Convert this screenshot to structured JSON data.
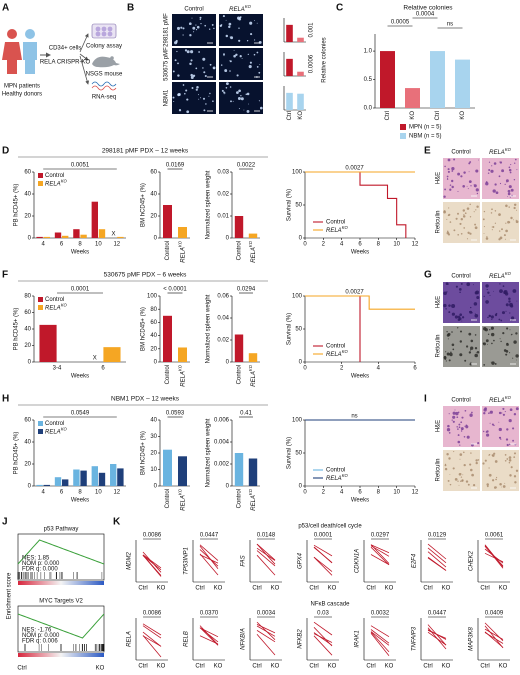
{
  "figure": {
    "panel_a": {
      "label": "A",
      "donors": [
        "MPN patients",
        "Healthy donors"
      ],
      "cells": "CD34+ cells",
      "method": "RELA CRISPR-KO",
      "assays": [
        "Colony assay",
        "NSGS mouse",
        "RNA-seq"
      ]
    },
    "panel_b": {
      "label": "B",
      "columns": [
        "Control",
        [
          "RELA",
          "KO"
        ]
      ],
      "rows": [
        "298181 pMF",
        "530675 pMF",
        "NBM1"
      ],
      "ylabel": "Relative colonies",
      "categories": [
        "Ctrl",
        "KO"
      ],
      "charts": [
        {
          "type": "bar",
          "values": [
            1,
            0.25
          ],
          "colors": [
            "#c0182a",
            "#e8707a"
          ],
          "ylim": [
            0,
            1.4
          ],
          "pvalue": "0.001"
        },
        {
          "type": "bar",
          "values": [
            1,
            0.25
          ],
          "colors": [
            "#c0182a",
            "#e8707a"
          ],
          "ylim": [
            0,
            1.4
          ],
          "pvalue": "0.0006"
        },
        {
          "type": "bar",
          "values": [
            1,
            0.95
          ],
          "colors": [
            "#a8d4ee",
            "#a8d4ee"
          ],
          "ylim": [
            0,
            1.4
          ]
        }
      ]
    },
    "panel_c": {
      "label": "C",
      "title": "Relative colonies",
      "type": "bar",
      "categories": [
        "Ctrl",
        "KO",
        "Ctrl",
        "KO"
      ],
      "values": [
        1,
        0.35,
        1,
        0.85
      ],
      "colors": [
        "#c0182a",
        "#e8707a",
        "#a8d4ee",
        "#a8d4ee"
      ],
      "ylim": [
        0,
        1.3
      ],
      "yticks": [
        {
          "value": 0,
          "label": "0.0"
        },
        0.5,
        {
          "value": 1,
          "label": "1.0"
        }
      ],
      "pvalues": [
        "0.0005",
        "0.0004",
        "ns"
      ],
      "legend": [
        {
          "name": "MPN (n = 5)",
          "color": "#c0182a"
        },
        {
          "name": "NBM (n = 5)",
          "color": "#a8d4ee"
        }
      ]
    },
    "panel_d": {
      "label": "D",
      "title": "298181 pMF PDX – 12 weeks",
      "pb": {
        "type": "bar",
        "ylabel": "PB hCD45+ (%)",
        "xlabel": "Weeks",
        "categories": [
          "4",
          "6",
          "8",
          "10",
          "12"
        ],
        "series": [
          {
            "name": "Control",
            "color": "#c0182a",
            "values": [
              1,
              5,
              8,
              33,
              null
            ]
          },
          {
            "name": [
              "RELA",
              "KO"
            ],
            "color": "#f5a623",
            "values": [
              1,
              2,
              3,
              8,
              1
            ]
          }
        ],
        "ylim": [
          0,
          60
        ],
        "yticks": [
          0,
          20,
          40,
          60
        ],
        "pvalue": "0.0051",
        "annotations": [
          {
            "text": "X",
            "x": "12"
          }
        ]
      },
      "bm": {
        "type": "bar",
        "ylabel": "BM hCD45+ (%)",
        "categories": [
          "Control",
          [
            "RELA",
            "KO"
          ]
        ],
        "values": [
          30,
          10
        ],
        "colors": [
          "#c0182a",
          "#f5a623"
        ],
        "ylim": [
          0,
          60
        ],
        "yticks": [
          0,
          20,
          40,
          60
        ],
        "pvalue": "0.0169"
      },
      "spleen": {
        "type": "bar",
        "ylabel": "Normalized spleen weight",
        "categories": [
          "Control",
          [
            "RELA",
            "KO"
          ]
        ],
        "values": [
          0.01,
          0.002
        ],
        "colors": [
          "#c0182a",
          "#f5a623"
        ],
        "ylim": [
          0,
          0.03
        ],
        "yticks": [
          0,
          0.01,
          0.02,
          0.03
        ],
        "pvalue": "0.0022"
      },
      "survival": {
        "type": "line",
        "ylabel": "Survival (%)",
        "xlabel": "Weeks",
        "series": [
          {
            "name": "Control",
            "color": "#c0182a",
            "x": [
              0,
              6,
              6,
              9,
              9,
              10,
              10,
              11,
              11
            ],
            "values": [
              100,
              100,
              80,
              80,
              60,
              60,
              20,
              20,
              0
            ]
          },
          {
            "name": [
              "RELA",
              "KO"
            ],
            "color": "#f5a623",
            "x": [
              0,
              12
            ],
            "values": [
              100,
              100
            ]
          }
        ],
        "xlim": [
          0,
          12
        ],
        "xticks": [
          0,
          2,
          4,
          6,
          8,
          10,
          12
        ],
        "ylim": [
          0,
          100
        ],
        "yticks": [
          0,
          50,
          100
        ],
        "pvalue": "0.0027"
      }
    },
    "panel_e": {
      "label": "E",
      "columns": [
        "Control",
        [
          "RELA",
          "KO"
        ]
      ],
      "rows": [
        "H&E",
        "Reticulin"
      ]
    },
    "panel_f": {
      "label": "F",
      "title": "530675 pMF PDX – 6 weeks",
      "pb": {
        "type": "bar",
        "ylabel": "PB hCD45+ (%)",
        "xlabel": "Weeks",
        "categories": [
          "3-4",
          "6"
        ],
        "series": [
          {
            "name": "Control",
            "color": "#c0182a",
            "values": [
              45,
              null
            ]
          },
          {
            "name": [
              "RELA",
              "KO"
            ],
            "color": "#f5a623",
            "values": [
              null,
              18
            ]
          }
        ],
        "ylim": [
          0,
          80
        ],
        "yticks": [
          0,
          20,
          40,
          60,
          80
        ],
        "pvalue": "0.0001",
        "annotations": [
          {
            "text": "X",
            "x": "6"
          }
        ]
      },
      "bm": {
        "type": "bar",
        "ylabel": "BM hCD45+ (%)",
        "categories": [
          "Control",
          [
            "RELA",
            "KO"
          ]
        ],
        "values": [
          70,
          22
        ],
        "colors": [
          "#c0182a",
          "#f5a623"
        ],
        "ylim": [
          0,
          100
        ],
        "yticks": [
          0,
          20,
          40,
          60,
          80,
          100
        ],
        "pvalue": "< 0.0001"
      },
      "spleen": {
        "type": "bar",
        "ylabel": "Normalized spleen weight",
        "categories": [
          "Control",
          [
            "RELA",
            "KO"
          ]
        ],
        "values": [
          0.025,
          0.008
        ],
        "colors": [
          "#c0182a",
          "#f5a623"
        ],
        "ylim": [
          0,
          0.06
        ],
        "yticks": [
          0,
          0.02,
          0.04,
          0.06
        ],
        "pvalue": "0.0294"
      },
      "survival": {
        "type": "line",
        "ylabel": "Survival (%)",
        "xlabel": "Weeks",
        "series": [
          {
            "name": "Control",
            "color": "#c0182a",
            "x": [
              0,
              3,
              3
            ],
            "values": [
              100,
              100,
              0
            ]
          },
          {
            "name": [
              "RELA",
              "KO"
            ],
            "color": "#f5a623",
            "x": [
              0,
              3.5,
              3.5,
              6
            ],
            "values": [
              100,
              100,
              80,
              80
            ]
          }
        ],
        "xlim": [
          0,
          6
        ],
        "xticks": [
          0,
          2,
          4,
          6
        ],
        "ylim": [
          0,
          100
        ],
        "yticks": [
          0,
          50,
          100
        ],
        "pvalue": "0.0027"
      }
    },
    "panel_g": {
      "label": "G",
      "columns": [
        "Control",
        [
          "RELA",
          "KO"
        ]
      ],
      "rows": [
        "H&E",
        "Reticulin"
      ]
    },
    "panel_h": {
      "label": "H",
      "title": "NBM1 PDX – 12 weeks",
      "pb": {
        "type": "bar",
        "ylabel": "PB hCD45+ (%)",
        "xlabel": "Weeks",
        "categories": [
          "4",
          "6",
          "8",
          "10",
          "12"
        ],
        "series": [
          {
            "name": "Control",
            "color": "#6ab4e0",
            "values": [
              1,
              8,
              15,
              18,
              20
            ]
          },
          {
            "name": [
              "RELA",
              "KO"
            ],
            "color": "#1f3f7a",
            "values": [
              1,
              6,
              14,
              12,
              16
            ]
          }
        ],
        "ylim": [
          0,
          60
        ],
        "yticks": [
          0,
          20,
          40,
          60
        ],
        "pvalue": "0.0549"
      },
      "bm": {
        "type": "bar",
        "ylabel": "BM hCD45+ (%)",
        "categories": [
          "Control",
          [
            "RELA",
            "KO"
          ]
        ],
        "values": [
          22,
          18
        ],
        "colors": [
          "#6ab4e0",
          "#1f3f7a"
        ],
        "ylim": [
          0,
          40
        ],
        "yticks": [
          0,
          10,
          20,
          30,
          40
        ],
        "pvalue": "0.0593"
      },
      "spleen": {
        "type": "bar",
        "ylabel": "Normalized spleen weight",
        "categories": [
          "Control",
          [
            "RELA",
            "KO"
          ]
        ],
        "values": [
          0.003,
          0.0025
        ],
        "colors": [
          "#6ab4e0",
          "#1f3f7a"
        ],
        "ylim": [
          0,
          0.006
        ],
        "yticks": [
          0,
          0.002,
          0.004,
          0.006
        ],
        "pvalue": "0.41"
      },
      "survival": {
        "type": "line",
        "ylabel": "Survival (%)",
        "xlabel": "Weeks",
        "series": [
          {
            "name": "Control",
            "color": "#6ab4e0",
            "x": [
              0,
              12
            ],
            "values": [
              100,
              100
            ]
          },
          {
            "name": [
              "RELA",
              "KO"
            ],
            "color": "#1f3f7a",
            "x": [
              0,
              12
            ],
            "values": [
              100,
              100
            ]
          }
        ],
        "xlim": [
          0,
          12
        ],
        "xticks": [
          0,
          2,
          4,
          6,
          8,
          10,
          12
        ],
        "ylim": [
          0,
          100
        ],
        "yticks": [
          0,
          50,
          100
        ],
        "pvalue": "ns"
      }
    },
    "panel_i": {
      "label": "I",
      "columns": [
        "Control",
        [
          "RELA",
          "KO"
        ]
      ],
      "rows": [
        "H&E",
        "Reticulin"
      ]
    },
    "panel_j": {
      "label": "J",
      "ylabel": "Enrichment score",
      "xlabels": [
        "Ctrl",
        "KO"
      ],
      "plots": [
        {
          "title": "p53 Pathway",
          "stats": [
            "NES: 1.85",
            "NOM p: 0.000",
            "FDR q: 0.000"
          ]
        },
        {
          "title": "MYC Targets V2",
          "stats": [
            "NES: -1.76",
            "NOM p: 0.000",
            "FDR q: 0.006"
          ]
        }
      ]
    },
    "panel_k": {
      "label": "K",
      "xlabels": [
        "Ctrl",
        "KO"
      ],
      "groups": [
        {
          "title": "p53/cell death/cell cycle",
          "genes": [
            {
              "name": "MDM2",
              "p": "0.0086"
            },
            {
              "name": "TP53INP1",
              "p": "0.0447"
            },
            {
              "name": "FAS",
              "p": "0.0148"
            },
            {
              "name": "GPX4",
              "p": "0.0001"
            },
            {
              "name": "CDKN1A",
              "p": "0.0297"
            },
            {
              "name": "E2F4",
              "p": "0.0129"
            },
            {
              "name": "CHEK2",
              "p": "0.0061"
            }
          ]
        },
        {
          "title": "NFκB cascade",
          "genes": [
            {
              "name": "RELA",
              "p": "0.0086"
            },
            {
              "name": "RELB",
              "p": "0.0370"
            },
            {
              "name": "NFKBIA",
              "p": "0.0034"
            },
            {
              "name": "NFKB2",
              "p": "0.03"
            },
            {
              "name": "IRAK1",
              "p": "0.0032"
            },
            {
              "name": "TNFAIP3",
              "p": "0.0447"
            },
            {
              "name": "MAP3K8",
              "p": "0.0409"
            }
          ]
        }
      ]
    }
  }
}
